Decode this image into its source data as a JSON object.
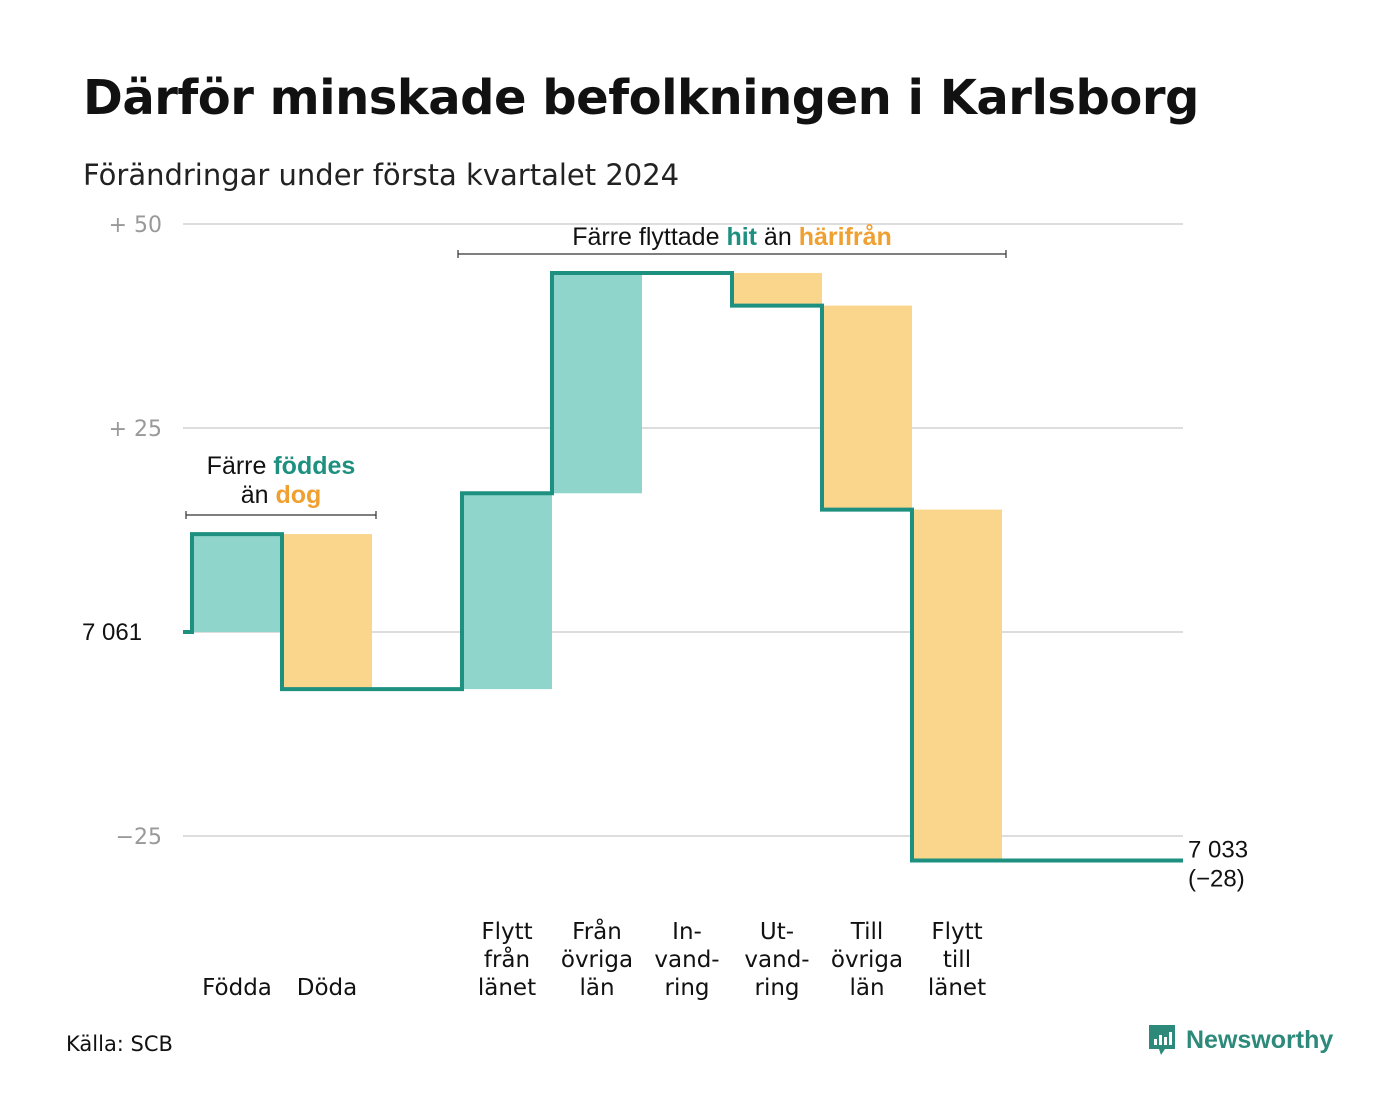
{
  "title": "Därför minskade befolkningen i Karlsborg",
  "subtitle": "Förändringar under första kvartalet 2024",
  "source": "Källa: SCB",
  "brand": {
    "name": "Newsworthy",
    "icon": "newsworthy-logo-icon"
  },
  "colors": {
    "inflow": "#8fd5cc",
    "outflow": "#fad58c",
    "line": "#1e9080",
    "accent_teal": "#1e9080",
    "accent_orange": "#f0a030",
    "grid": "#dddddd",
    "tick": "#999999"
  },
  "chart_data": {
    "type": "waterfall",
    "start": {
      "label": "7  061",
      "value": 7061
    },
    "end": {
      "label": "7 033",
      "change_label": "(−28)",
      "value": 7033,
      "change": -28
    },
    "ylim": [
      -32,
      53
    ],
    "yticks": [
      {
        "value": 50,
        "label": "+  50"
      },
      {
        "value": 25,
        "label": "+  25"
      },
      {
        "value": 0,
        "label": ""
      },
      {
        "value": -25,
        "label": "−25"
      }
    ],
    "steps": [
      {
        "label": [
          "",
          "",
          "Födda"
        ],
        "value": 12,
        "kind": "in"
      },
      {
        "label": [
          "",
          "",
          "Döda"
        ],
        "value": -19,
        "kind": "out"
      },
      {
        "label": [
          "",
          "",
          ""
        ],
        "value": 0,
        "kind": "gap"
      },
      {
        "label": [
          "Flytt",
          "från",
          "länet"
        ],
        "value": 24,
        "kind": "in"
      },
      {
        "label": [
          "Från",
          "övriga",
          "län"
        ],
        "value": 27,
        "kind": "in"
      },
      {
        "label": [
          "In-",
          "vand-",
          "ring"
        ],
        "value": 0,
        "kind": "in"
      },
      {
        "label": [
          "Ut-",
          "vand-",
          "ring"
        ],
        "value": -4,
        "kind": "out"
      },
      {
        "label": [
          "Till",
          "övriga",
          "län"
        ],
        "value": -25,
        "kind": "out"
      },
      {
        "label": [
          "Flytt",
          "till",
          "länet"
        ],
        "value": -43,
        "kind": "out"
      },
      {
        "label": [
          "",
          "",
          ""
        ],
        "value": 0,
        "kind": "gap"
      }
    ],
    "annotations": [
      {
        "parts": [
          {
            "text": "Färre ",
            "color": "plain"
          },
          {
            "text": "föddes",
            "color": "teal"
          }
        ],
        "parts2": [
          {
            "text": "än ",
            "color": "plain"
          },
          {
            "text": "dog",
            "color": "orange"
          }
        ],
        "from_step": 0,
        "to_step": 1
      },
      {
        "parts": [
          {
            "text": "Färre flyttade ",
            "color": "plain"
          },
          {
            "text": "hit",
            "color": "teal"
          },
          {
            "text": " än ",
            "color": "plain"
          },
          {
            "text": "härifrån",
            "color": "orange"
          }
        ],
        "from_step": 3,
        "to_step": 8
      }
    ]
  }
}
